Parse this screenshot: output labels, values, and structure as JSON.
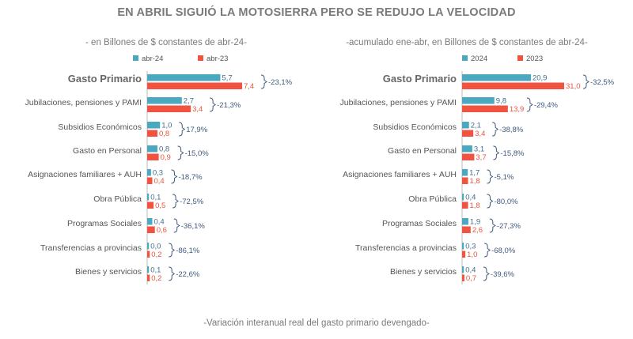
{
  "title": "EN ABRIL SIGUIÓ LA MOTOSIERRA PERO SE REDUJO LA VELOCIDAD",
  "footer": "-Variación interanual real del gasto primario devengado-",
  "colors": {
    "current": "#4aa8c0",
    "previous": "#f0533f",
    "label_current": "#3f6e8c",
    "label_previous": "#e8553e",
    "category": "#555555",
    "variation": "#3f5a7a",
    "bracket": "#3f5a7a",
    "axis": "#bbbbbb"
  },
  "chart_data": [
    {
      "type": "bar",
      "subtitle": "- en Billones de $ constantes de abr-24-",
      "legend": [
        {
          "name": "abr-24",
          "color": "#4aa8c0"
        },
        {
          "name": "abr-23",
          "color": "#f0533f"
        }
      ],
      "categories": [
        "Gasto Primario",
        "Jubilaciones, pensiones y PAMI",
        "Subsidios Económicos",
        "Gasto en Personal",
        "Asignaciones familiares + AUH",
        "Obra Pública",
        "Programas Sociales",
        "Transferencias a provincias",
        "Bienes y servicios"
      ],
      "series": [
        {
          "name": "abr-24",
          "values": [
            5.7,
            2.7,
            1.0,
            0.8,
            0.3,
            0.1,
            0.4,
            0.0,
            0.1
          ],
          "labels": [
            "5,7",
            "2,7",
            "1,0",
            "0,8",
            "0,3",
            "0,1",
            "0,4",
            "0,0",
            "0,1"
          ]
        },
        {
          "name": "abr-23",
          "values": [
            7.4,
            3.4,
            0.8,
            0.9,
            0.4,
            0.5,
            0.6,
            0.2,
            0.2
          ],
          "labels": [
            "7,4",
            "3,4",
            "0,8",
            "0,9",
            "0,4",
            "0,5",
            "0,6",
            "0,2",
            "0,2"
          ]
        }
      ],
      "variation": [
        "-23,1%",
        "-21,3%",
        "17,9%",
        "-15,0%",
        "-18,7%",
        "-72,5%",
        "-36,1%",
        "-86,1%",
        "-22,6%"
      ],
      "xlim": [
        0,
        7.4
      ]
    },
    {
      "type": "bar",
      "subtitle": "-acumulado ene-abr, en Billones de $ constantes de abr-24-",
      "legend": [
        {
          "name": "2024",
          "color": "#4aa8c0"
        },
        {
          "name": "2023",
          "color": "#f0533f"
        }
      ],
      "categories": [
        "Gasto Primario",
        "Jubilaciones, pensiones y PAMI",
        "Subsidios Económicos",
        "Gasto en Personal",
        "Asignaciones familiares + AUH",
        "Obra Pública",
        "Programas Sociales",
        "Transferencias a provincias",
        "Bienes y servicios"
      ],
      "series": [
        {
          "name": "2024",
          "values": [
            20.9,
            9.8,
            2.1,
            3.1,
            1.7,
            0.4,
            1.9,
            0.3,
            0.4
          ],
          "labels": [
            "20,9",
            "9,8",
            "2,1",
            "3,1",
            "1,7",
            "0,4",
            "1,9",
            "0,3",
            "0,4"
          ]
        },
        {
          "name": "2023",
          "values": [
            31.0,
            13.9,
            3.4,
            3.7,
            1.8,
            1.8,
            2.6,
            1.0,
            0.7
          ],
          "labels": [
            "31,0",
            "13,9",
            "3,4",
            "3,7",
            "1,8",
            "1,8",
            "2,6",
            "1,0",
            "0,7"
          ]
        }
      ],
      "variation": [
        "-32,5%",
        "-29,4%",
        "-38,8%",
        "-15,8%",
        "-5,1%",
        "-80,0%",
        "-27,3%",
        "-68,0%",
        "-39,6%"
      ],
      "xlim": [
        0,
        31.0
      ]
    }
  ]
}
